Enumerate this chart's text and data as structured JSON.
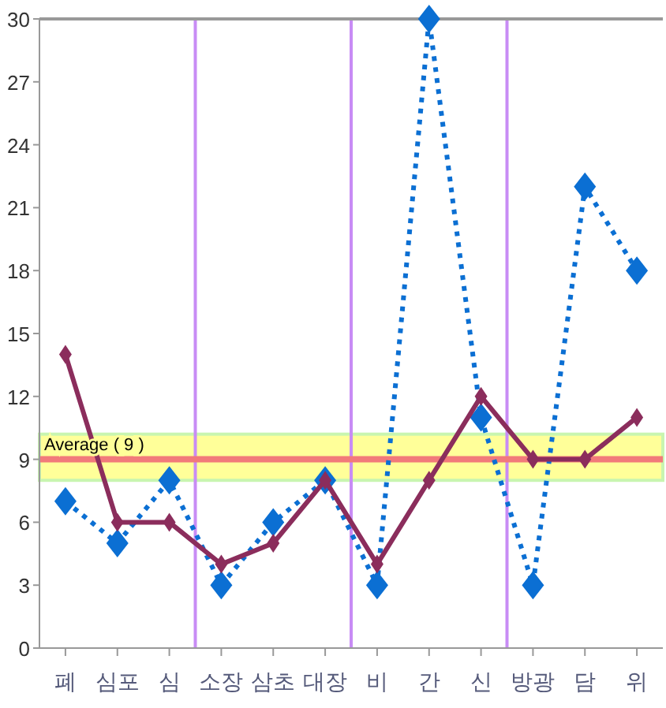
{
  "chart_data": {
    "type": "line",
    "categories": [
      "폐",
      "심포",
      "심",
      "소장",
      "삼초",
      "대장",
      "비",
      "간",
      "신",
      "방광",
      "담",
      "위"
    ],
    "series": [
      {
        "color": "#0b6fd3",
        "line_style": "dotted",
        "values": [
          7,
          5,
          8,
          3,
          6,
          8,
          3,
          30,
          11,
          3,
          22,
          18
        ]
      },
      {
        "color": "#8b2d5c",
        "line_style": "solid",
        "values": [
          14,
          6,
          6,
          4,
          5,
          8,
          4,
          8,
          12,
          9,
          9,
          11
        ]
      }
    ],
    "marker": "diamond",
    "ylim": [
      0,
      30
    ],
    "yticks": [
      0,
      3,
      6,
      9,
      12,
      15,
      18,
      21,
      24,
      27,
      30
    ],
    "grid": false,
    "bands": [
      {
        "axis": "y",
        "from": 8,
        "to": 10.2,
        "color": "#ffff99"
      }
    ],
    "ref_lines": [
      {
        "axis": "y",
        "value": 9,
        "label": "Average ( 9 )",
        "color": "#f27a7a"
      }
    ]
  }
}
